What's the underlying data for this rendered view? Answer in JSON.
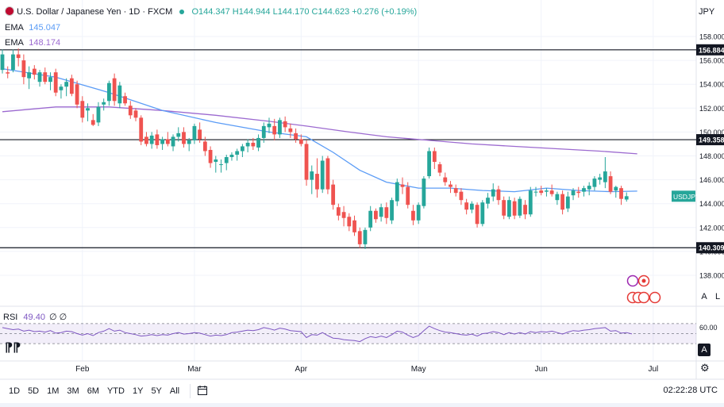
{
  "header": {
    "title": "U.S. Dollar / Japanese Yen · 1D · FXCM",
    "ohlc": "O144.347 H144.944 L144.170 C144.623 +0.276 (+0.19%)",
    "ema1_label": "EMA",
    "ema1_value": "145.047",
    "ema2_label": "EMA",
    "ema2_value": "148.174"
  },
  "currency": "JPY",
  "symbol_tag": "USDJPY",
  "rsi": {
    "label": "RSI",
    "value": "49.40",
    "extra": "∅ ∅",
    "level_label": "60.00"
  },
  "axis_buttons": {
    "auto": "A",
    "log": "L"
  },
  "timeframes": [
    "1D",
    "5D",
    "1M",
    "3M",
    "6M",
    "YTD",
    "1Y",
    "5Y",
    "All"
  ],
  "clock": "02:22:28 UTC",
  "colors": {
    "up": "#26a69a",
    "down": "#ef5350",
    "ema_fast": "#5b9cf6",
    "ema_slow": "#9c6ad0",
    "rsi": "#7e57c2"
  },
  "chart_data": {
    "type": "candlestick",
    "symbol": "USDJPY",
    "y_ticks": [
      138,
      140,
      142,
      144,
      146,
      148,
      150,
      152,
      154,
      156,
      158
    ],
    "ylim": [
      137,
      159
    ],
    "x_labels": [
      {
        "label": "Feb",
        "idx": 15
      },
      {
        "label": "Mar",
        "idx": 36
      },
      {
        "label": "Apr",
        "idx": 56
      },
      {
        "label": "May",
        "idx": 78
      },
      {
        "label": "Jun",
        "idx": 101
      },
      {
        "label": "Jul",
        "idx": 122
      }
    ],
    "horizontal_levels": [
      156.884,
      149.358,
      140.309
    ],
    "last_price": 144.623,
    "candles": [
      {
        "o": 155.2,
        "h": 156.9,
        "l": 154.9,
        "c": 156.5
      },
      {
        "o": 155.0,
        "h": 155.5,
        "l": 154.5,
        "c": 154.9
      },
      {
        "o": 155.2,
        "h": 156.9,
        "l": 155.0,
        "c": 156.5
      },
      {
        "o": 156.5,
        "h": 157.0,
        "l": 155.5,
        "c": 156.2
      },
      {
        "o": 156.0,
        "h": 156.5,
        "l": 154.0,
        "c": 154.6
      },
      {
        "o": 154.5,
        "h": 155.5,
        "l": 153.6,
        "c": 155.0
      },
      {
        "o": 155.3,
        "h": 155.6,
        "l": 154.4,
        "c": 154.8
      },
      {
        "o": 154.2,
        "h": 155.2,
        "l": 153.8,
        "c": 155.0
      },
      {
        "o": 155.0,
        "h": 155.4,
        "l": 154.0,
        "c": 154.2
      },
      {
        "o": 154.2,
        "h": 155.0,
        "l": 153.5,
        "c": 154.6
      },
      {
        "o": 155.0,
        "h": 155.3,
        "l": 153.0,
        "c": 153.3
      },
      {
        "o": 153.5,
        "h": 154.0,
        "l": 152.8,
        "c": 153.8
      },
      {
        "o": 153.8,
        "h": 154.5,
        "l": 153.0,
        "c": 154.2
      },
      {
        "o": 154.5,
        "h": 154.8,
        "l": 153.0,
        "c": 153.2
      },
      {
        "o": 154.0,
        "h": 154.3,
        "l": 152.0,
        "c": 152.3
      },
      {
        "o": 152.6,
        "h": 153.0,
        "l": 150.8,
        "c": 151.2
      },
      {
        "o": 151.8,
        "h": 152.4,
        "l": 150.9,
        "c": 152.0
      },
      {
        "o": 151.0,
        "h": 151.5,
        "l": 150.5,
        "c": 150.6
      },
      {
        "o": 150.8,
        "h": 152.5,
        "l": 150.5,
        "c": 152.1
      },
      {
        "o": 152.3,
        "h": 152.8,
        "l": 151.8,
        "c": 152.5
      },
      {
        "o": 152.6,
        "h": 154.3,
        "l": 152.2,
        "c": 154.1
      },
      {
        "o": 154.5,
        "h": 154.9,
        "l": 152.2,
        "c": 152.6
      },
      {
        "o": 152.4,
        "h": 154.2,
        "l": 152.0,
        "c": 153.9
      },
      {
        "o": 153.0,
        "h": 153.3,
        "l": 152.2,
        "c": 152.4
      },
      {
        "o": 152.2,
        "h": 152.6,
        "l": 151.1,
        "c": 151.4
      },
      {
        "o": 151.8,
        "h": 152.0,
        "l": 150.9,
        "c": 151.2
      },
      {
        "o": 151.2,
        "h": 151.4,
        "l": 148.9,
        "c": 149.2
      },
      {
        "o": 149.6,
        "h": 150.0,
        "l": 148.8,
        "c": 149.0
      },
      {
        "o": 149.0,
        "h": 150.0,
        "l": 148.6,
        "c": 149.7
      },
      {
        "o": 149.8,
        "h": 150.2,
        "l": 148.6,
        "c": 148.9
      },
      {
        "o": 149.0,
        "h": 149.6,
        "l": 148.5,
        "c": 149.4
      },
      {
        "o": 149.4,
        "h": 150.0,
        "l": 148.8,
        "c": 149.0
      },
      {
        "o": 148.8,
        "h": 149.8,
        "l": 148.4,
        "c": 149.6
      },
      {
        "o": 149.6,
        "h": 150.4,
        "l": 149.2,
        "c": 149.9
      },
      {
        "o": 150.0,
        "h": 150.4,
        "l": 148.7,
        "c": 149.0
      },
      {
        "o": 149.0,
        "h": 149.5,
        "l": 148.4,
        "c": 149.3
      },
      {
        "o": 149.3,
        "h": 150.7,
        "l": 149.0,
        "c": 150.5
      },
      {
        "o": 150.2,
        "h": 150.8,
        "l": 149.1,
        "c": 149.4
      },
      {
        "o": 149.2,
        "h": 149.6,
        "l": 148.0,
        "c": 148.4
      },
      {
        "o": 148.5,
        "h": 148.8,
        "l": 147.0,
        "c": 147.4
      },
      {
        "o": 147.5,
        "h": 148.0,
        "l": 146.6,
        "c": 147.7
      },
      {
        "o": 147.3,
        "h": 147.7,
        "l": 146.6,
        "c": 147.3
      },
      {
        "o": 147.4,
        "h": 148.1,
        "l": 146.8,
        "c": 147.9
      },
      {
        "o": 147.9,
        "h": 148.3,
        "l": 147.6,
        "c": 148.1
      },
      {
        "o": 148.1,
        "h": 148.6,
        "l": 147.6,
        "c": 148.4
      },
      {
        "o": 148.4,
        "h": 149.0,
        "l": 147.9,
        "c": 148.8
      },
      {
        "o": 148.8,
        "h": 149.4,
        "l": 148.3,
        "c": 149.1
      },
      {
        "o": 149.1,
        "h": 149.5,
        "l": 148.5,
        "c": 148.8
      },
      {
        "o": 148.7,
        "h": 149.8,
        "l": 148.4,
        "c": 149.5
      },
      {
        "o": 149.5,
        "h": 150.8,
        "l": 149.1,
        "c": 150.5
      },
      {
        "o": 150.4,
        "h": 151.2,
        "l": 149.9,
        "c": 150.7
      },
      {
        "o": 150.5,
        "h": 151.1,
        "l": 149.3,
        "c": 149.8
      },
      {
        "o": 149.8,
        "h": 151.2,
        "l": 149.5,
        "c": 151.0
      },
      {
        "o": 150.9,
        "h": 151.3,
        "l": 150.0,
        "c": 150.4
      },
      {
        "o": 150.3,
        "h": 150.7,
        "l": 149.5,
        "c": 150.0
      },
      {
        "o": 149.9,
        "h": 150.3,
        "l": 149.1,
        "c": 149.4
      },
      {
        "o": 149.4,
        "h": 149.8,
        "l": 148.8,
        "c": 149.0
      },
      {
        "o": 149.0,
        "h": 149.3,
        "l": 145.5,
        "c": 146.0
      },
      {
        "o": 146.0,
        "h": 147.2,
        "l": 144.8,
        "c": 146.7
      },
      {
        "o": 146.5,
        "h": 147.8,
        "l": 144.5,
        "c": 145.2
      },
      {
        "o": 145.2,
        "h": 148.0,
        "l": 144.9,
        "c": 147.6
      },
      {
        "o": 147.8,
        "h": 148.0,
        "l": 144.8,
        "c": 145.2
      },
      {
        "o": 145.6,
        "h": 146.0,
        "l": 143.5,
        "c": 143.9
      },
      {
        "o": 143.7,
        "h": 144.0,
        "l": 142.6,
        "c": 143.0
      },
      {
        "o": 143.3,
        "h": 143.8,
        "l": 142.1,
        "c": 142.8
      },
      {
        "o": 142.9,
        "h": 143.2,
        "l": 141.7,
        "c": 142.1
      },
      {
        "o": 142.6,
        "h": 143.0,
        "l": 141.3,
        "c": 141.6
      },
      {
        "o": 141.7,
        "h": 142.0,
        "l": 140.3,
        "c": 140.6
      },
      {
        "o": 140.6,
        "h": 142.0,
        "l": 140.2,
        "c": 141.8
      },
      {
        "o": 142.0,
        "h": 143.8,
        "l": 141.7,
        "c": 143.4
      },
      {
        "o": 143.4,
        "h": 143.6,
        "l": 142.4,
        "c": 142.7
      },
      {
        "o": 142.9,
        "h": 144.0,
        "l": 142.5,
        "c": 143.7
      },
      {
        "o": 143.7,
        "h": 144.1,
        "l": 142.3,
        "c": 142.8
      },
      {
        "o": 142.6,
        "h": 144.5,
        "l": 142.3,
        "c": 144.3
      },
      {
        "o": 144.2,
        "h": 146.1,
        "l": 143.8,
        "c": 145.8
      },
      {
        "o": 145.6,
        "h": 146.2,
        "l": 144.8,
        "c": 145.4
      },
      {
        "o": 145.4,
        "h": 145.8,
        "l": 143.6,
        "c": 143.9
      },
      {
        "o": 143.4,
        "h": 143.9,
        "l": 142.2,
        "c": 142.6
      },
      {
        "o": 142.6,
        "h": 144.1,
        "l": 142.3,
        "c": 143.9
      },
      {
        "o": 143.8,
        "h": 146.3,
        "l": 143.6,
        "c": 146.1
      },
      {
        "o": 146.3,
        "h": 148.7,
        "l": 146.1,
        "c": 148.4
      },
      {
        "o": 148.4,
        "h": 148.7,
        "l": 146.9,
        "c": 147.5
      },
      {
        "o": 147.3,
        "h": 147.5,
        "l": 146.3,
        "c": 146.6
      },
      {
        "o": 146.2,
        "h": 146.6,
        "l": 145.5,
        "c": 145.8
      },
      {
        "o": 145.6,
        "h": 145.9,
        "l": 144.9,
        "c": 145.4
      },
      {
        "o": 145.3,
        "h": 145.6,
        "l": 144.6,
        "c": 144.9
      },
      {
        "o": 145.0,
        "h": 145.3,
        "l": 143.9,
        "c": 144.3
      },
      {
        "o": 144.1,
        "h": 144.4,
        "l": 143.1,
        "c": 143.5
      },
      {
        "o": 143.5,
        "h": 144.2,
        "l": 143.2,
        "c": 144.0
      },
      {
        "o": 143.9,
        "h": 144.1,
        "l": 142.0,
        "c": 142.3
      },
      {
        "o": 142.3,
        "h": 144.3,
        "l": 142.1,
        "c": 144.1
      },
      {
        "o": 144.0,
        "h": 144.9,
        "l": 143.6,
        "c": 144.5
      },
      {
        "o": 144.6,
        "h": 145.7,
        "l": 144.2,
        "c": 145.2
      },
      {
        "o": 145.2,
        "h": 145.5,
        "l": 143.9,
        "c": 144.3
      },
      {
        "o": 144.3,
        "h": 144.6,
        "l": 142.7,
        "c": 143.0
      },
      {
        "o": 142.9,
        "h": 144.6,
        "l": 142.7,
        "c": 144.3
      },
      {
        "o": 144.2,
        "h": 144.5,
        "l": 142.7,
        "c": 143.0
      },
      {
        "o": 143.0,
        "h": 144.6,
        "l": 142.8,
        "c": 144.4
      },
      {
        "o": 143.9,
        "h": 144.3,
        "l": 142.7,
        "c": 143.1
      },
      {
        "o": 143.1,
        "h": 145.4,
        "l": 142.9,
        "c": 145.1
      },
      {
        "o": 145.0,
        "h": 145.4,
        "l": 144.6,
        "c": 145.0
      },
      {
        "o": 145.1,
        "h": 145.5,
        "l": 144.7,
        "c": 144.9
      },
      {
        "o": 145.0,
        "h": 145.3,
        "l": 144.6,
        "c": 145.1
      },
      {
        "o": 145.1,
        "h": 145.6,
        "l": 144.6,
        "c": 144.8
      },
      {
        "o": 144.3,
        "h": 145.0,
        "l": 143.9,
        "c": 144.8
      },
      {
        "o": 144.8,
        "h": 145.1,
        "l": 143.1,
        "c": 143.5
      },
      {
        "o": 143.6,
        "h": 145.0,
        "l": 143.3,
        "c": 144.6
      },
      {
        "o": 144.7,
        "h": 145.3,
        "l": 144.3,
        "c": 145.1
      },
      {
        "o": 145.0,
        "h": 145.4,
        "l": 144.5,
        "c": 144.9
      },
      {
        "o": 145.0,
        "h": 145.5,
        "l": 144.6,
        "c": 145.3
      },
      {
        "o": 145.2,
        "h": 145.8,
        "l": 144.7,
        "c": 145.5
      },
      {
        "o": 145.4,
        "h": 146.3,
        "l": 145.1,
        "c": 146.1
      },
      {
        "o": 146.0,
        "h": 146.5,
        "l": 145.6,
        "c": 146.2
      },
      {
        "o": 145.8,
        "h": 147.9,
        "l": 145.3,
        "c": 146.7
      },
      {
        "o": 146.3,
        "h": 146.7,
        "l": 144.8,
        "c": 145.0
      },
      {
        "o": 145.1,
        "h": 145.5,
        "l": 144.5,
        "c": 145.4
      },
      {
        "o": 145.3,
        "h": 145.5,
        "l": 143.9,
        "c": 144.4
      },
      {
        "o": 144.347,
        "h": 144.944,
        "l": 144.17,
        "c": 144.623
      }
    ],
    "ema_fast": [
      [
        0,
        155.3
      ],
      [
        10,
        154.6
      ],
      [
        20,
        153.3
      ],
      [
        30,
        151.8
      ],
      [
        40,
        150.8
      ],
      [
        50,
        150.0
      ],
      [
        57,
        149.6
      ],
      [
        62,
        148.3
      ],
      [
        67,
        146.8
      ],
      [
        72,
        145.8
      ],
      [
        78,
        145.3
      ],
      [
        84,
        145.3
      ],
      [
        90,
        145.1
      ],
      [
        96,
        145.0
      ],
      [
        102,
        145.3
      ],
      [
        108,
        145.1
      ],
      [
        114,
        145.0
      ],
      [
        119,
        145.05
      ]
    ],
    "ema_slow": [
      [
        0,
        151.7
      ],
      [
        10,
        152.1
      ],
      [
        20,
        152.1
      ],
      [
        30,
        151.8
      ],
      [
        40,
        151.4
      ],
      [
        50,
        150.9
      ],
      [
        57,
        150.5
      ],
      [
        65,
        150.0
      ],
      [
        72,
        149.6
      ],
      [
        80,
        149.3
      ],
      [
        88,
        149.0
      ],
      [
        96,
        148.8
      ],
      [
        104,
        148.6
      ],
      [
        112,
        148.4
      ],
      [
        119,
        148.17
      ]
    ],
    "rsi_ylim": [
      0,
      100
    ],
    "rsi_levels": [
      70,
      50,
      30
    ],
    "rsi": [
      62,
      60,
      58,
      59,
      55,
      57,
      54,
      55,
      53,
      56,
      51,
      52,
      55,
      54,
      50,
      47,
      50,
      46,
      52,
      55,
      60,
      55,
      57,
      52,
      50,
      48,
      45,
      46,
      48,
      46,
      48,
      47,
      50,
      52,
      49,
      50,
      52,
      51,
      48,
      45,
      47,
      46,
      48,
      52,
      53,
      55,
      57,
      56,
      58,
      62,
      60,
      57,
      61,
      59,
      56,
      55,
      54,
      42,
      48,
      47,
      52,
      46,
      41,
      40,
      38,
      37,
      36,
      34,
      40,
      44,
      42,
      45,
      42,
      48,
      55,
      53,
      47,
      42,
      46,
      56,
      65,
      60,
      56,
      53,
      52,
      50,
      48,
      47,
      49,
      45,
      50,
      51,
      54,
      52,
      48,
      52,
      49,
      52,
      49,
      54,
      52,
      54,
      53,
      55,
      52,
      49,
      53,
      56,
      55,
      57,
      58,
      60,
      61,
      62,
      55,
      56,
      51,
      52,
      49.4
    ]
  }
}
